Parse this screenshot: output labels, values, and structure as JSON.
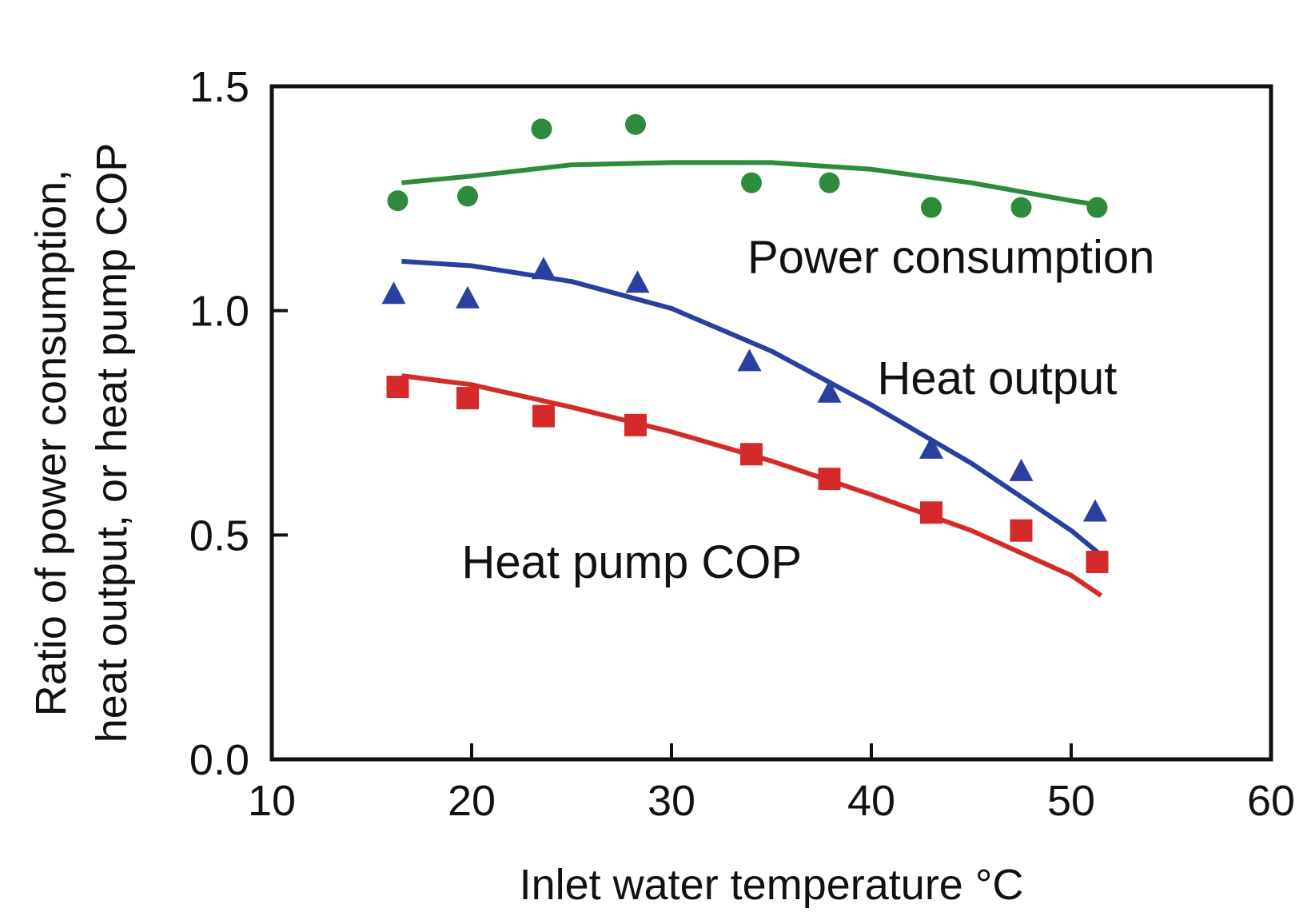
{
  "chart_data": {
    "type": "scatter",
    "title": "",
    "xlabel": "Inlet water temperature  °C",
    "ylabel_lines": [
      "Ratio of power consumption,",
      "heat output, or heat pump COP"
    ],
    "xlim": [
      10,
      60
    ],
    "ylim": [
      0,
      1.5
    ],
    "x_ticks": [
      10,
      20,
      30,
      40,
      50,
      60
    ],
    "y_ticks": [
      0.0,
      0.5,
      1.0,
      1.5
    ],
    "x_tick_labels": [
      "10",
      "20",
      "30",
      "40",
      "50",
      "60"
    ],
    "y_tick_labels": [
      "0.0",
      "0.5",
      "1.0",
      "1.5"
    ],
    "grid": false,
    "legend": "none",
    "series": [
      {
        "name": "Power consumption",
        "color": "#2e8b3e",
        "marker": "circle",
        "points": {
          "x": [
            16.3,
            19.8,
            23.5,
            28.2,
            34.0,
            37.9,
            43.0,
            47.5,
            51.3
          ],
          "y": [
            1.245,
            1.255,
            1.405,
            1.415,
            1.285,
            1.285,
            1.23,
            1.23,
            1.23
          ]
        },
        "fit": {
          "x": [
            16.5,
            20,
            25,
            30,
            35,
            40,
            45,
            50,
            51.5
          ],
          "y": [
            1.285,
            1.3,
            1.325,
            1.33,
            1.33,
            1.315,
            1.285,
            1.245,
            1.235
          ]
        },
        "annotation": {
          "text": "Power consumption",
          "x": 33.8,
          "y": 1.12
        }
      },
      {
        "name": "Heat output",
        "color": "#2a3f9e",
        "marker": "triangle",
        "points": {
          "x": [
            16.1,
            19.8,
            23.6,
            28.3,
            33.9,
            37.9,
            43.0,
            47.5,
            51.2
          ],
          "y": [
            1.035,
            1.025,
            1.09,
            1.06,
            0.885,
            0.815,
            0.69,
            0.64,
            0.55
          ]
        },
        "fit": {
          "x": [
            16.5,
            20,
            25,
            30,
            35,
            40,
            45,
            50,
            51.5
          ],
          "y": [
            1.11,
            1.1,
            1.065,
            1.005,
            0.91,
            0.79,
            0.66,
            0.51,
            0.455
          ]
        },
        "annotation": {
          "text": "Heat output",
          "x": 40.3,
          "y": 0.85
        }
      },
      {
        "name": "Heat pump COP",
        "color": "#d42a2a",
        "marker": "square",
        "points": {
          "x": [
            16.3,
            19.8,
            23.6,
            28.2,
            34.0,
            37.9,
            43.0,
            47.5,
            51.3
          ],
          "y": [
            0.83,
            0.805,
            0.765,
            0.745,
            0.68,
            0.625,
            0.55,
            0.51,
            0.44
          ]
        },
        "fit": {
          "x": [
            16.5,
            20,
            25,
            30,
            35,
            40,
            45,
            50,
            51.5
          ],
          "y": [
            0.855,
            0.835,
            0.785,
            0.73,
            0.665,
            0.59,
            0.51,
            0.41,
            0.365
          ]
        },
        "annotation": {
          "text": "Heat pump COP",
          "x": 19.5,
          "y": 0.44
        }
      }
    ]
  }
}
